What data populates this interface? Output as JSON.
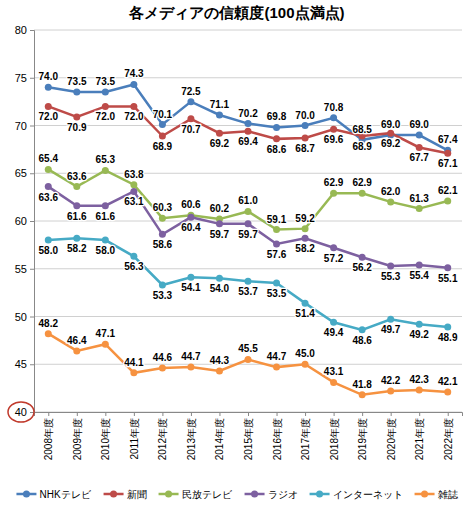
{
  "chart_data": {
    "type": "line",
    "title": "各メディアの信頼度(100点満点)",
    "categories": [
      "2008年度",
      "2009年度",
      "2010年度",
      "2011年度",
      "2012年度",
      "2013年度",
      "2014年度",
      "2015年度",
      "2016年度",
      "2017年度",
      "2018年度",
      "2019年度",
      "2020年度",
      "2021年度",
      "2022年度"
    ],
    "series": [
      {
        "name": "NHKテレビ",
        "color": "#4a7ebb",
        "values": [
          74.0,
          73.5,
          73.5,
          74.3,
          70.1,
          72.5,
          71.1,
          70.2,
          69.8,
          70.0,
          70.8,
          68.5,
          69.0,
          69.0,
          67.4
        ],
        "value_labels": [
          "74.0",
          "73.5",
          "73.5",
          "74.3",
          "70.1",
          "72.5",
          "71.1",
          "70.2",
          "69.8",
          "70.0",
          "70.8",
          "68.5",
          "69.0",
          "69.0",
          "67.4"
        ]
      },
      {
        "name": "新聞",
        "color": "#be4b48",
        "values": [
          72.0,
          70.9,
          72.0,
          72.0,
          68.9,
          70.7,
          69.2,
          69.4,
          68.6,
          68.7,
          69.6,
          68.9,
          69.2,
          67.7,
          67.1
        ],
        "value_labels": [
          "72.0",
          "70.9",
          "72.0",
          "72.0",
          "68.9",
          "70.7",
          "69.2",
          "69.4",
          "68.6",
          "68.7",
          "69.6",
          "68.9",
          "69.2",
          "67.7",
          "67.1"
        ]
      },
      {
        "name": "民放テレビ",
        "color": "#98b954",
        "values": [
          65.4,
          63.6,
          65.3,
          63.8,
          60.3,
          60.6,
          60.2,
          61.0,
          59.1,
          59.2,
          62.9,
          62.9,
          62.0,
          61.3,
          62.1
        ],
        "value_labels": [
          "65.4",
          "63.6",
          "65.3",
          "63.8",
          "60.3",
          "60.6",
          "60.2",
          "61.0",
          "59.1",
          "59.2",
          "62.9",
          "62.9",
          "62.0",
          "61.3",
          "62.1"
        ]
      },
      {
        "name": "ラジオ",
        "color": "#7d60a0",
        "values": [
          63.6,
          61.6,
          61.6,
          63.1,
          58.6,
          60.4,
          59.7,
          59.7,
          57.6,
          58.2,
          57.2,
          56.2,
          55.3,
          55.4,
          55.1
        ],
        "value_labels": [
          "63.6",
          "61.6",
          "61.6",
          "63.1",
          "58.6",
          "60.4",
          "59.7",
          "59.7",
          "57.6",
          "58.2",
          "57.2",
          "56.2",
          "55.3",
          "55.4",
          "55.1"
        ]
      },
      {
        "name": "インターネット",
        "color": "#46aac5",
        "values": [
          58.0,
          58.2,
          58.0,
          56.3,
          53.3,
          54.1,
          54.0,
          53.7,
          53.5,
          51.4,
          49.4,
          48.6,
          49.7,
          49.2,
          48.9
        ],
        "value_labels": [
          "58.0",
          "58.2",
          "58.0",
          "56.3",
          "53.3",
          "54.1",
          "54.0",
          "53.7",
          "53.5",
          "51.4",
          "49.4",
          "48.6",
          "49.7",
          "49.2",
          "48.9"
        ]
      },
      {
        "name": "雑誌",
        "color": "#f69240",
        "values": [
          48.2,
          46.4,
          47.1,
          44.1,
          44.6,
          44.7,
          44.3,
          45.5,
          44.7,
          45.0,
          43.1,
          41.8,
          42.2,
          42.3,
          42.1
        ],
        "value_labels": [
          "48.2",
          "46.4",
          "47.1",
          "44.1",
          "44.6",
          "44.7",
          "44.3",
          "45.5",
          "44.7",
          "45.0",
          "43.1",
          "41.8",
          "42.2",
          "42.3",
          "42.1"
        ]
      }
    ],
    "ylim": [
      40,
      80
    ],
    "yticks": [
      40,
      45,
      50,
      55,
      60,
      65,
      70,
      75,
      80
    ],
    "grid": true,
    "legend": "bottom",
    "data_labels": true,
    "marker": "circle"
  }
}
